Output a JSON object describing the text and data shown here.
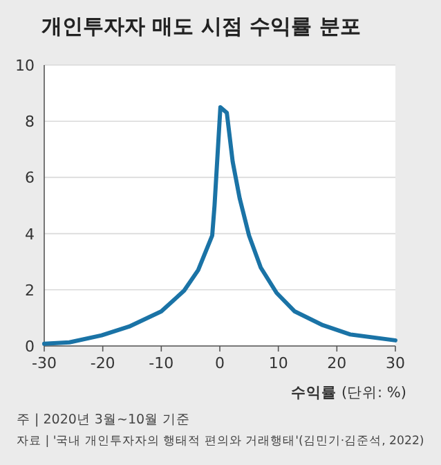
{
  "chart_data": {
    "type": "line",
    "title": "개인투자자 매도 시점 수익률 분포",
    "xlabel": "**수익률** (단위: %)",
    "x": [
      -30,
      -25.7,
      -20.2,
      -15.5,
      -10,
      -6.1,
      -3.7,
      -1.3,
      -0.9,
      0.1,
      1.2,
      2.2,
      3.4,
      5,
      7,
      9.7,
      12.8,
      17.6,
      22.3,
      30
    ],
    "series": [
      {
        "color": "#1a73a6",
        "values": [
          0.08,
          0.13,
          0.38,
          0.69,
          1.23,
          1.97,
          2.7,
          3.93,
          5.0,
          8.5,
          8.3,
          6.56,
          5.25,
          3.93,
          2.79,
          1.89,
          1.23,
          0.74,
          0.41,
          0.2
        ]
      }
    ],
    "xlim": [
      -30,
      30
    ],
    "xticks": [
      -30,
      -20,
      -10,
      0,
      10,
      20,
      30
    ],
    "ylim": [
      0,
      10
    ],
    "yticks": [
      0,
      2,
      4,
      6,
      8,
      10
    ],
    "grid": "y",
    "annotations": [
      "주 | 2020년 3월~10월 기준",
      "자료 | '국내 개인투자자의 행태적 편의와 거래행태'(김민기·김준석, 2022)"
    ]
  }
}
